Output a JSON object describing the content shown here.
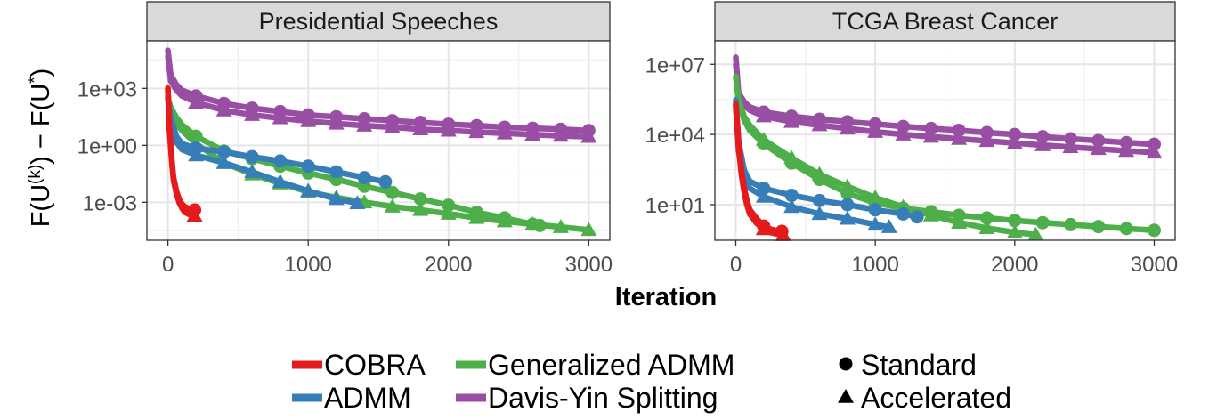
{
  "chart_data": {
    "type": "line",
    "xlabel": "Iteration",
    "ylabel": "F(U(k)) − F(U*)",
    "yscale": "log",
    "legend": {
      "placement": "bottom",
      "methods": [
        {
          "name": "COBRA",
          "color": "#E41A1C"
        },
        {
          "name": "Generalized ADMM",
          "color": "#4DAF4A"
        },
        {
          "name": "ADMM",
          "color": "#377EB8"
        },
        {
          "name": "Davis-Yin Splitting",
          "color": "#984EA3"
        }
      ],
      "variants": [
        {
          "name": "Standard",
          "shape": "circle"
        },
        {
          "name": "Accelerated",
          "shape": "triangle"
        }
      ]
    },
    "panels": [
      {
        "title": "Presidential Speeches",
        "xlim": [
          -150,
          3150
        ],
        "ylim": [
          1e-05,
          316228
        ],
        "xticks": [
          {
            "v": 0,
            "label": "0"
          },
          {
            "v": 1000,
            "label": "1000"
          },
          {
            "v": 2000,
            "label": "2000"
          },
          {
            "v": 3000,
            "label": "3000"
          }
        ],
        "yticks": [
          {
            "v": 0.001,
            "label": "1e-03"
          },
          {
            "v": 1,
            "label": "1e+00"
          },
          {
            "v": 1000,
            "label": "1e+03"
          }
        ],
        "series": [
          {
            "method": "Davis-Yin Splitting",
            "variant": "Standard",
            "x": [
              0,
              20,
              60,
              100,
              200,
              400,
              600,
              800,
              1000,
              1200,
              1400,
              1600,
              1800,
              2000,
              2200,
              2400,
              2600,
              2800,
              3000
            ],
            "y": [
              100000,
              5000,
              1600,
              800,
              400,
              160,
              90,
              60,
              40,
              32,
              25,
              20,
              16,
              13,
              11,
              9,
              8,
              7,
              6
            ]
          },
          {
            "method": "Davis-Yin Splitting",
            "variant": "Accelerated",
            "x": [
              0,
              20,
              60,
              100,
              200,
              400,
              600,
              800,
              1000,
              1200,
              1400,
              1600,
              1800,
              2000,
              2200,
              2400,
              2600,
              2800,
              3000
            ],
            "y": [
              50000,
              2500,
              800,
              400,
              180,
              70,
              40,
              27,
              19,
              14,
              11,
              9,
              7,
              6,
              5,
              4.3,
              3.7,
              3.2,
              2.8
            ]
          },
          {
            "method": "Generalized ADMM",
            "variant": "Standard",
            "x": [
              0,
              20,
              60,
              100,
              200,
              400,
              600,
              800,
              1000,
              1200,
              1400,
              1600,
              1800,
              2000,
              2200,
              2400,
              2600,
              2650
            ],
            "y": [
              300,
              100,
              30,
              12,
              3,
              0.5,
              0.2,
              0.08,
              0.035,
              0.016,
              0.007,
              0.0033,
              0.0015,
              0.0007,
              0.0003,
              0.00015,
              7e-05,
              6e-05
            ]
          },
          {
            "method": "Generalized ADMM",
            "variant": "Accelerated",
            "x": [
              0,
              20,
              60,
              100,
              200,
              400,
              600,
              800,
              1000,
              1200,
              1400,
              1600,
              1800,
              2000,
              2200,
              2400,
              2600,
              2800,
              3000
            ],
            "y": [
              300,
              70,
              15,
              6,
              1.2,
              0.12,
              0.03,
              0.01,
              0.0035,
              0.0018,
              0.001,
              0.0006,
              0.0004,
              0.00025,
              0.00015,
              0.0001,
              7e-05,
              5e-05,
              3.5e-05
            ]
          },
          {
            "method": "ADMM",
            "variant": "Standard",
            "x": [
              0,
              20,
              60,
              100,
              200,
              400,
              600,
              800,
              1000,
              1200,
              1400,
              1550
            ],
            "y": [
              300,
              30,
              3,
              1.2,
              0.7,
              0.45,
              0.25,
              0.15,
              0.08,
              0.04,
              0.02,
              0.012
            ]
          },
          {
            "method": "ADMM",
            "variant": "Accelerated",
            "x": [
              0,
              20,
              60,
              100,
              200,
              400,
              600,
              800,
              1000,
              1200,
              1350
            ],
            "y": [
              300,
              20,
              1.5,
              0.6,
              0.3,
              0.12,
              0.04,
              0.012,
              0.004,
              0.0015,
              0.0009
            ]
          },
          {
            "method": "COBRA",
            "variant": "Standard",
            "x": [
              0,
              5,
              10,
              20,
              30,
              40,
              60,
              80,
              100,
              120,
              150,
              180,
              190
            ],
            "y": [
              1000,
              100,
              10,
              1,
              0.1,
              0.02,
              0.004,
              0.0015,
              0.0008,
              0.0006,
              0.00045,
              0.0004,
              0.00039
            ]
          },
          {
            "method": "COBRA",
            "variant": "Accelerated",
            "x": [
              0,
              5,
              10,
              20,
              30,
              40,
              60,
              80,
              100,
              120,
              150,
              190
            ],
            "y": [
              1000,
              80,
              8,
              0.8,
              0.08,
              0.015,
              0.003,
              0.001,
              0.0005,
              0.0003,
              0.00023,
              0.0002
            ]
          }
        ]
      },
      {
        "title": "TCGA Breast Cancer",
        "xlim": [
          -150,
          3150
        ],
        "ylim": [
          0.3,
          100000000
        ],
        "xticks": [
          {
            "v": 0,
            "label": "0"
          },
          {
            "v": 1000,
            "label": "1000"
          },
          {
            "v": 2000,
            "label": "2000"
          },
          {
            "v": 3000,
            "label": "3000"
          }
        ],
        "yticks": [
          {
            "v": 10,
            "label": "1e+01"
          },
          {
            "v": 10000,
            "label": "1e+04"
          },
          {
            "v": 10000000,
            "label": "1e+07"
          }
        ],
        "series": [
          {
            "method": "Davis-Yin Splitting",
            "variant": "Standard",
            "x": [
              0,
              20,
              60,
              100,
              200,
              400,
              600,
              800,
              1000,
              1200,
              1400,
              1600,
              1800,
              2000,
              2200,
              2400,
              2600,
              2800,
              3000
            ],
            "y": [
              20000000,
              600000,
              250000,
              150000,
              90000,
              60000,
              45000,
              35000,
              28000,
              22000,
              18000,
              15000,
              12000,
              10000,
              8000,
              6500,
              5500,
              4500,
              3800
            ]
          },
          {
            "method": "Davis-Yin Splitting",
            "variant": "Accelerated",
            "x": [
              0,
              20,
              60,
              100,
              200,
              400,
              600,
              800,
              1000,
              1200,
              1400,
              1600,
              1800,
              2000,
              2200,
              2400,
              2600,
              2800,
              3000
            ],
            "y": [
              10000000,
              400000,
              180000,
              110000,
              60000,
              35000,
              25000,
              18000,
              13000,
              10000,
              8000,
              6500,
              5300,
              4300,
              3500,
              2900,
              2400,
              2000,
              1700
            ]
          },
          {
            "method": "Generalized ADMM",
            "variant": "Standard",
            "x": [
              0,
              20,
              60,
              100,
              200,
              400,
              600,
              800,
              1000,
              1200,
              1400,
              1600,
              1800,
              2000,
              2200,
              2400,
              2600,
              2800,
              3000
            ],
            "y": [
              3000000,
              300000,
              40000,
              15000,
              4000,
              600,
              120,
              30,
              12,
              7,
              5,
              3.5,
              2.7,
              2.1,
              1.7,
              1.4,
              1.15,
              0.95,
              0.8
            ]
          },
          {
            "method": "Generalized ADMM",
            "variant": "Accelerated",
            "x": [
              0,
              20,
              60,
              100,
              200,
              400,
              600,
              800,
              1000,
              1200,
              1400,
              1600,
              1800,
              2000,
              2150
            ],
            "y": [
              3000000,
              300000,
              60000,
              25000,
              6000,
              1000,
              200,
              60,
              20,
              8,
              3.5,
              1.7,
              1,
              0.65,
              0.52
            ]
          },
          {
            "method": "ADMM",
            "variant": "Standard",
            "x": [
              0,
              20,
              60,
              100,
              200,
              400,
              600,
              800,
              1000,
              1200,
              1300
            ],
            "y": [
              300000,
              5000,
              300,
              100,
              50,
              25,
              15,
              10,
              6,
              4,
              3
            ]
          },
          {
            "method": "ADMM",
            "variant": "Accelerated",
            "x": [
              0,
              20,
              60,
              100,
              200,
              400,
              600,
              800,
              1000,
              1100
            ],
            "y": [
              200000,
              2000,
              120,
              50,
              22,
              8,
              4,
              2.5,
              1.4,
              1.1
            ]
          },
          {
            "method": "COBRA",
            "variant": "Standard",
            "x": [
              0,
              10,
              20,
              40,
              60,
              80,
              100,
              150,
              200,
              250,
              300,
              330
            ],
            "y": [
              200000,
              30000,
              5000,
              300,
              50,
              15,
              6,
              2.5,
              1.2,
              0.9,
              0.75,
              0.72
            ]
          },
          {
            "method": "COBRA",
            "variant": "Accelerated",
            "x": [
              0,
              10,
              20,
              40,
              60,
              80,
              100,
              150,
              200,
              250,
              300,
              340
            ],
            "y": [
              150000,
              20000,
              3000,
              200,
              35,
              10,
              4,
              1.6,
              0.9,
              0.65,
              0.55,
              0.5
            ]
          }
        ]
      }
    ]
  }
}
